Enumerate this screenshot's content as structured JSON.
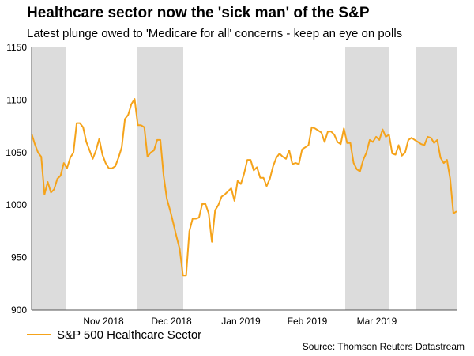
{
  "chart_data": {
    "type": "line",
    "title": "Healthcare sector now the 'sick man' of the S&P",
    "subtitle": "Latest plunge owed to 'Medicare for all' concerns - keep an eye on polls",
    "source": "Source: Thomson Reuters Datastream",
    "ylim": [
      900,
      1150
    ],
    "y_ticks": [
      "900",
      "950",
      "1000",
      "1050",
      "1100",
      "1150"
    ],
    "x_tick_labels": [
      "Nov 2018",
      "Dec 2018",
      "Jan 2019",
      "Feb 2019",
      "Mar 2019"
    ],
    "shaded_month_bands": [
      "Oct 2018",
      "Dec 2018",
      "Feb 2019",
      "Apr 2019"
    ],
    "series": [
      {
        "name": "S&P 500 Healthcare Sector",
        "color": "#f5a31a",
        "values": [
          1068,
          1058,
          1050,
          1046,
          1010,
          1022,
          1012,
          1015,
          1025,
          1028,
          1040,
          1035,
          1045,
          1050,
          1078,
          1078,
          1074,
          1060,
          1052,
          1044,
          1052,
          1063,
          1048,
          1040,
          1035,
          1035,
          1037,
          1045,
          1055,
          1082,
          1086,
          1096,
          1101,
          1076,
          1076,
          1074,
          1046,
          1050,
          1052,
          1062,
          1062,
          1028,
          1006,
          995,
          983,
          970,
          958,
          933,
          933,
          975,
          987,
          987,
          988,
          1001,
          1001,
          992,
          965,
          995,
          1000,
          1008,
          1010,
          1013,
          1016,
          1004,
          1023,
          1020,
          1030,
          1043,
          1043,
          1033,
          1036,
          1026,
          1026,
          1018,
          1025,
          1037,
          1045,
          1049,
          1046,
          1044,
          1052,
          1039,
          1040,
          1039,
          1053,
          1055,
          1057,
          1074,
          1073,
          1071,
          1069,
          1060,
          1070,
          1070,
          1067,
          1060,
          1058,
          1073,
          1059,
          1059,
          1040,
          1034,
          1032,
          1043,
          1050,
          1062,
          1060,
          1065,
          1062,
          1072,
          1065,
          1067,
          1049,
          1048,
          1057,
          1047,
          1050,
          1062,
          1064,
          1062,
          1060,
          1058,
          1057,
          1065,
          1064,
          1059,
          1062,
          1045,
          1040,
          1043,
          1025,
          992,
          994
        ]
      }
    ]
  }
}
